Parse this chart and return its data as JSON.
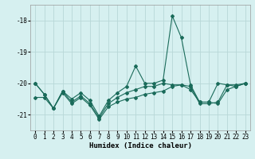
{
  "xlabel": "Humidex (Indice chaleur)",
  "bg_color": "#d6f0f0",
  "grid_color": "#b8d8d8",
  "line_color": "#1a6b5a",
  "xlim": [
    -0.5,
    23.5
  ],
  "ylim": [
    -21.5,
    -17.5
  ],
  "yticks": [
    -21,
    -20,
    -19,
    -18
  ],
  "xticks": [
    0,
    1,
    2,
    3,
    4,
    5,
    6,
    7,
    8,
    9,
    10,
    11,
    12,
    13,
    14,
    15,
    16,
    17,
    18,
    19,
    20,
    21,
    22,
    23
  ],
  "s1_x": [
    0,
    1,
    2,
    3,
    4,
    5,
    6,
    7,
    8,
    9,
    10,
    11,
    12,
    13,
    14,
    15,
    16,
    17,
    18,
    19,
    20,
    21,
    22,
    23
  ],
  "s1_y": [
    -20.0,
    -20.35,
    -20.8,
    -20.25,
    -20.5,
    -20.3,
    -20.55,
    -21.05,
    -20.55,
    -20.3,
    -20.1,
    -19.45,
    -20.0,
    -20.0,
    -19.9,
    -17.85,
    -18.55,
    -20.05,
    -20.6,
    -20.6,
    -20.0,
    -20.05,
    -20.05,
    -20.0
  ],
  "s2_x": [
    0,
    1,
    2,
    3,
    4,
    5,
    6,
    7,
    8,
    9,
    10,
    11,
    12,
    13,
    14,
    15,
    16,
    17,
    18,
    19,
    20,
    21,
    22,
    23
  ],
  "s2_y": [
    -20.0,
    -20.35,
    -20.8,
    -20.25,
    -20.6,
    -20.4,
    -20.65,
    -21.1,
    -20.65,
    -20.45,
    -20.3,
    -20.2,
    -20.1,
    -20.1,
    -20.0,
    -20.05,
    -20.05,
    -20.1,
    -20.65,
    -20.65,
    -20.6,
    -20.05,
    -20.1,
    -20.0
  ],
  "s3_x": [
    0,
    1,
    2,
    3,
    4,
    5,
    6,
    7,
    8,
    9,
    10,
    11,
    12,
    13,
    14,
    15,
    16,
    17,
    18,
    19,
    20,
    21,
    22,
    23
  ],
  "s3_y": [
    -20.45,
    -20.45,
    -20.8,
    -20.3,
    -20.65,
    -20.45,
    -20.7,
    -21.15,
    -20.75,
    -20.6,
    -20.5,
    -20.45,
    -20.35,
    -20.3,
    -20.25,
    -20.1,
    -20.05,
    -20.2,
    -20.6,
    -20.6,
    -20.65,
    -20.2,
    -20.1,
    -20.0
  ]
}
